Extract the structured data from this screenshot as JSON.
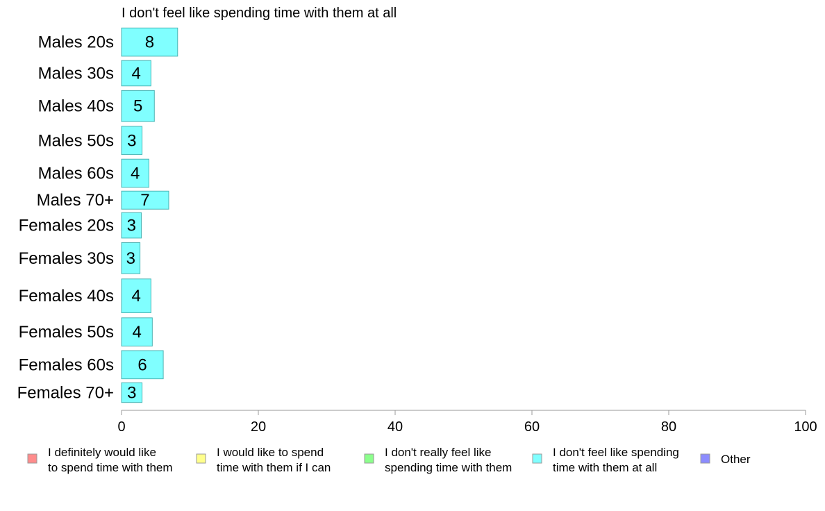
{
  "chart_data": {
    "type": "bar",
    "orientation": "horizontal",
    "title": "I don't feel like spending time with them at all",
    "xlabel": "",
    "ylabel": "",
    "xlim": [
      0,
      100
    ],
    "ticks": [
      0,
      20,
      40,
      60,
      80,
      100
    ],
    "grid": false,
    "categories": [
      "Males 20s",
      "Males 30s",
      "Males 40s",
      "Males 50s",
      "Males 60s",
      "Males 70+",
      "Females 20s",
      "Females 30s",
      "Females 40s",
      "Females 50s",
      "Females 60s",
      "Females 70+"
    ],
    "band_weights": [
      1.0,
      0.9,
      1.1,
      1.0,
      1.0,
      0.64,
      0.9,
      1.1,
      1.2,
      1.0,
      1.0,
      0.7
    ],
    "values": [
      8.2,
      4.3,
      4.8,
      3.0,
      4.0,
      6.9,
      2.9,
      2.7,
      4.3,
      4.5,
      6.1,
      3.0
    ],
    "value_labels": [
      "8",
      "4",
      "5",
      "3",
      "4",
      "7",
      "3",
      "3",
      "4",
      "4",
      "6",
      "3"
    ],
    "bar_color": "#80ffff",
    "bar_stroke": "#4cb3b3",
    "legend_position": "bottom",
    "legend": [
      {
        "lines": [
          "I definitely would like",
          "to spend time with them"
        ],
        "color": "#ff8c8c"
      },
      {
        "lines": [
          "I would like to spend",
          "time with them if I can"
        ],
        "color": "#ffff8c"
      },
      {
        "lines": [
          "I don't really feel like",
          "spending time with them"
        ],
        "color": "#8cff8c"
      },
      {
        "lines": [
          "I don't feel like spending",
          "time with them at all"
        ],
        "color": "#80ffff"
      },
      {
        "lines": [
          "Other"
        ],
        "color": "#8c8cff"
      }
    ]
  }
}
